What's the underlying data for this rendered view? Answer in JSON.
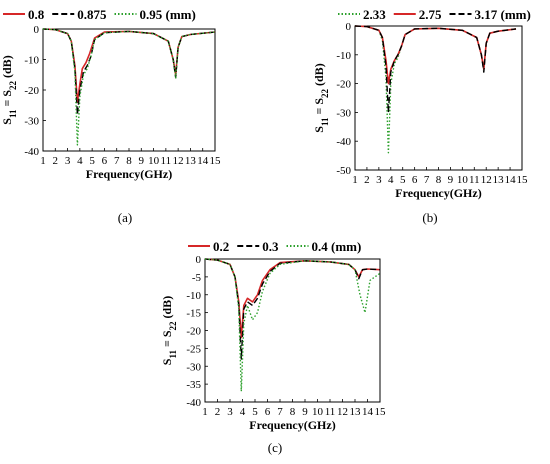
{
  "chart_data": [
    {
      "panel": "a",
      "caption": "(a)",
      "type": "line",
      "legend": [
        {
          "label": "0.8",
          "color": "#d62728",
          "style": "solid"
        },
        {
          "label": "0.875",
          "color": "#000000",
          "style": "dash"
        },
        {
          "label": "0.95 (mm)",
          "color": "#2ca02c",
          "style": "dot"
        }
      ],
      "xlabel": "Frequency(GHz)",
      "ylabel": "S11 = S22 (dB)",
      "xlim": [
        1,
        15
      ],
      "ylim": [
        -40,
        0
      ],
      "xticks": [
        1,
        2,
        3,
        4,
        5,
        6,
        7,
        8,
        9,
        10,
        11,
        12,
        13,
        14,
        15
      ],
      "yticks": [
        0,
        -10,
        -20,
        -30,
        -40
      ],
      "series": [
        {
          "name": "0.8",
          "color": "#d62728",
          "style": "solid",
          "x": [
            1,
            2,
            3,
            3.3,
            3.6,
            3.8,
            4.0,
            4.2,
            4.5,
            4.8,
            5.2,
            6,
            8,
            10,
            11.2,
            11.6,
            11.8,
            12.0,
            12.3,
            13,
            15
          ],
          "y": [
            0,
            -0.2,
            -1.5,
            -4,
            -12,
            -24,
            -18,
            -13,
            -11,
            -8,
            -3,
            -1,
            -0.8,
            -1.5,
            -4,
            -10,
            -15,
            -6,
            -2.5,
            -1.8,
            -1
          ]
        },
        {
          "name": "0.875",
          "color": "#000000",
          "style": "dash",
          "x": [
            1,
            2,
            3,
            3.3,
            3.6,
            3.8,
            4.0,
            4.3,
            4.6,
            4.9,
            5.2,
            6,
            8,
            10,
            11.2,
            11.6,
            11.8,
            12.0,
            12.3,
            13,
            15
          ],
          "y": [
            0,
            -0.2,
            -1.5,
            -4,
            -13,
            -28,
            -20,
            -14,
            -12,
            -9,
            -3.5,
            -1.2,
            -0.8,
            -1.5,
            -4,
            -10,
            -16,
            -6,
            -2.5,
            -1.8,
            -1
          ]
        },
        {
          "name": "0.95 (mm)",
          "color": "#2ca02c",
          "style": "dot",
          "x": [
            1,
            2,
            3,
            3.3,
            3.6,
            3.8,
            4.0,
            4.3,
            4.6,
            4.9,
            5.2,
            6,
            8,
            10,
            11.2,
            11.6,
            11.8,
            12.0,
            12.3,
            13,
            15
          ],
          "y": [
            0,
            -0.2,
            -1.5,
            -4,
            -14,
            -38,
            -22,
            -15,
            -13,
            -9,
            -3.5,
            -1.2,
            -0.8,
            -1.5,
            -4,
            -10,
            -16,
            -6,
            -2.5,
            -1.8,
            -1
          ]
        }
      ]
    },
    {
      "panel": "b",
      "caption": "(b)",
      "type": "line",
      "legend": [
        {
          "label": "2.33",
          "color": "#2ca02c",
          "style": "dot"
        },
        {
          "label": "2.75",
          "color": "#d62728",
          "style": "solid"
        },
        {
          "label": "3.17 (mm)",
          "color": "#000000",
          "style": "dash"
        }
      ],
      "xlabel": "Frequency(GHz)",
      "ylabel": "S11 = S22 (dB)",
      "xlim": [
        1,
        15
      ],
      "ylim": [
        -50,
        0
      ],
      "xticks": [
        1,
        2,
        3,
        4,
        5,
        6,
        7,
        8,
        9,
        10,
        11,
        12,
        13,
        14,
        15
      ],
      "yticks": [
        0,
        -10,
        -20,
        -30,
        -40,
        -50
      ],
      "series": [
        {
          "name": "2.33",
          "color": "#2ca02c",
          "style": "dot",
          "x": [
            1,
            2,
            3,
            3.3,
            3.6,
            3.8,
            4.0,
            4.3,
            4.6,
            4.9,
            5.2,
            6,
            8,
            10,
            11.2,
            11.6,
            11.8,
            12.0,
            12.3,
            13,
            14.5
          ],
          "y": [
            0,
            -0.2,
            -1.5,
            -5,
            -18,
            -44,
            -20,
            -13,
            -11,
            -7,
            -3,
            -1,
            -0.8,
            -1.5,
            -4,
            -10,
            -15,
            -6,
            -2.5,
            -1.8,
            -1
          ]
        },
        {
          "name": "2.75",
          "color": "#d62728",
          "style": "solid",
          "x": [
            1,
            2,
            3,
            3.3,
            3.6,
            3.8,
            4.0,
            4.3,
            4.6,
            4.9,
            5.2,
            6,
            8,
            10,
            11.2,
            11.6,
            11.8,
            12.0,
            12.3,
            13,
            14.5
          ],
          "y": [
            0,
            -0.2,
            -1.5,
            -4,
            -12,
            -20,
            -15,
            -12,
            -10,
            -7,
            -3,
            -1,
            -0.8,
            -1.5,
            -4,
            -10,
            -15,
            -6,
            -2.5,
            -1.8,
            -1
          ]
        },
        {
          "name": "3.17 (mm)",
          "color": "#000000",
          "style": "dash",
          "x": [
            1,
            2,
            3,
            3.3,
            3.6,
            3.8,
            4.0,
            4.3,
            4.6,
            4.9,
            5.2,
            6,
            8,
            10,
            11.2,
            11.6,
            11.8,
            12.0,
            12.3,
            13,
            14.5
          ],
          "y": [
            0,
            -0.2,
            -1.5,
            -4,
            -14,
            -30,
            -16,
            -12,
            -10,
            -7,
            -3,
            -1,
            -0.8,
            -1.5,
            -4,
            -10,
            -16,
            -6,
            -2.5,
            -1.8,
            -1
          ]
        }
      ]
    },
    {
      "panel": "c",
      "caption": "(c)",
      "type": "line",
      "legend": [
        {
          "label": "0.2",
          "color": "#d62728",
          "style": "solid"
        },
        {
          "label": "0.3",
          "color": "#000000",
          "style": "dash"
        },
        {
          "label": "0.4 (mm)",
          "color": "#2ca02c",
          "style": "dot"
        }
      ],
      "xlabel": "Frequency(GHz)",
      "ylabel": "S11 = S22 (dB)",
      "xlim": [
        1,
        15
      ],
      "ylim": [
        -40,
        0
      ],
      "xticks": [
        1,
        2,
        3,
        4,
        5,
        6,
        7,
        8,
        9,
        10,
        11,
        12,
        13,
        14,
        15
      ],
      "yticks": [
        0,
        -5,
        -10,
        -15,
        -20,
        -25,
        -30,
        -35,
        -40
      ],
      "series": [
        {
          "name": "0.2",
          "color": "#d62728",
          "style": "solid",
          "x": [
            1,
            2,
            3,
            3.4,
            3.7,
            3.9,
            4.1,
            4.4,
            4.8,
            5.2,
            5.6,
            6.2,
            7,
            9,
            11,
            12.5,
            13.0,
            13.3,
            13.6,
            14,
            15
          ],
          "y": [
            0,
            -0.3,
            -1.5,
            -5,
            -12,
            -22,
            -13,
            -11,
            -12,
            -10,
            -6,
            -3,
            -1,
            -0.5,
            -0.8,
            -1.5,
            -3,
            -5,
            -3,
            -2.8,
            -3
          ]
        },
        {
          "name": "0.3",
          "color": "#000000",
          "style": "dash",
          "x": [
            1,
            2,
            3,
            3.4,
            3.7,
            3.9,
            4.1,
            4.4,
            4.8,
            5.2,
            5.6,
            6.2,
            7,
            9,
            11,
            12.5,
            13.0,
            13.3,
            13.6,
            14,
            15
          ],
          "y": [
            0,
            -0.3,
            -1.5,
            -5,
            -13,
            -28,
            -14,
            -12,
            -13,
            -11,
            -7,
            -3.5,
            -1.2,
            -0.5,
            -0.8,
            -1.5,
            -3,
            -5.5,
            -3,
            -2.8,
            -3
          ]
        },
        {
          "name": "0.4 (mm)",
          "color": "#2ca02c",
          "style": "dot",
          "x": [
            1,
            2,
            3,
            3.4,
            3.7,
            3.9,
            4.1,
            4.4,
            4.8,
            5.2,
            5.6,
            6.2,
            7,
            9,
            11,
            12.5,
            13.0,
            13.4,
            13.8,
            14.2,
            15
          ],
          "y": [
            0,
            -0.3,
            -1.5,
            -5,
            -14,
            -37,
            -18,
            -13,
            -17,
            -15,
            -9,
            -4,
            -1.5,
            -0.5,
            -0.8,
            -1.5,
            -3,
            -10,
            -15,
            -6,
            -4
          ]
        }
      ]
    }
  ]
}
